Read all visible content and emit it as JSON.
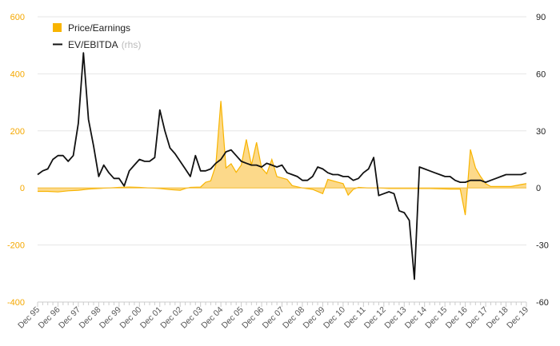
{
  "chart_data": {
    "type": "area+line",
    "x_labels": [
      "Dec 95",
      "Dec 96",
      "Dec 97",
      "Dec 98",
      "Dec 99",
      "Dec 00",
      "Dec 01",
      "Dec 02",
      "Dec 03",
      "Dec 04",
      "Dec 05",
      "Dec 06",
      "Dec 07",
      "Dec 08",
      "Dec 09",
      "Dec 10",
      "Dec 11",
      "Dec 12",
      "Dec 13",
      "Dec 14",
      "Dec 15",
      "Dec 16",
      "Dec 17",
      "Dec 18",
      "Dec 19"
    ],
    "y_left": {
      "min": -400,
      "max": 600,
      "ticks": [
        "600",
        "400",
        "200",
        "0",
        "-200",
        "-400"
      ],
      "tick_values": [
        600,
        400,
        200,
        0,
        -200,
        -400
      ]
    },
    "y_right": {
      "min": -60,
      "max": 90,
      "ticks": [
        "90",
        "60",
        "30",
        "0",
        "-30",
        "-60"
      ],
      "tick_values": [
        90,
        60,
        30,
        0,
        -30,
        -60
      ]
    },
    "grid": true,
    "legend": {
      "position": "top-left",
      "items": [
        {
          "label": "Price/Earnings",
          "note": ""
        },
        {
          "label": "EV/EBITDA",
          "note": "(rhs)"
        }
      ]
    },
    "colors": {
      "pe": "#f8b400",
      "pe_fill": "#fcd98a",
      "ev": "#111111",
      "grid": "#e6e6e6",
      "left_axis": "#f5a800"
    },
    "series": [
      {
        "name": "Price/Earnings",
        "axis": "left",
        "style": "area",
        "points": [
          [
            1995.75,
            -12
          ],
          [
            1996.25,
            -12
          ],
          [
            1996.75,
            -14
          ],
          [
            1997.25,
            -10
          ],
          [
            1997.75,
            -8
          ],
          [
            1998.25,
            -4
          ],
          [
            1998.75,
            -2
          ],
          [
            1999.25,
            0
          ],
          [
            1999.75,
            2
          ],
          [
            2000.25,
            3
          ],
          [
            2000.75,
            2
          ],
          [
            2001.25,
            0
          ],
          [
            2001.75,
            -2
          ],
          [
            2002.25,
            -6
          ],
          [
            2002.75,
            -8
          ],
          [
            2003.0,
            -2
          ],
          [
            2003.25,
            2
          ],
          [
            2003.75,
            3
          ],
          [
            2004.0,
            20
          ],
          [
            2004.25,
            25
          ],
          [
            2004.5,
            80
          ],
          [
            2004.75,
            305
          ],
          [
            2005.0,
            70
          ],
          [
            2005.25,
            85
          ],
          [
            2005.5,
            55
          ],
          [
            2005.75,
            80
          ],
          [
            2006.0,
            170
          ],
          [
            2006.25,
            80
          ],
          [
            2006.5,
            160
          ],
          [
            2006.75,
            70
          ],
          [
            2007.0,
            50
          ],
          [
            2007.25,
            100
          ],
          [
            2007.5,
            40
          ],
          [
            2007.75,
            35
          ],
          [
            2008.0,
            30
          ],
          [
            2008.25,
            8
          ],
          [
            2008.75,
            0
          ],
          [
            2009.25,
            -5
          ],
          [
            2009.75,
            -20
          ],
          [
            2010.0,
            30
          ],
          [
            2010.5,
            20
          ],
          [
            2010.75,
            15
          ],
          [
            2011.0,
            -25
          ],
          [
            2011.25,
            -5
          ],
          [
            2011.5,
            2
          ],
          [
            2012.0,
            0
          ],
          [
            2012.5,
            0
          ],
          [
            2013.0,
            -2
          ],
          [
            2013.5,
            -2
          ],
          [
            2014.0,
            -2
          ],
          [
            2014.5,
            -2
          ],
          [
            2015.0,
            -2
          ],
          [
            2015.5,
            -3
          ],
          [
            2016.0,
            -4
          ],
          [
            2016.5,
            -4
          ],
          [
            2016.75,
            -95
          ],
          [
            2017.0,
            135
          ],
          [
            2017.25,
            70
          ],
          [
            2017.5,
            40
          ],
          [
            2017.75,
            15
          ],
          [
            2018.0,
            5
          ],
          [
            2018.5,
            5
          ],
          [
            2019.0,
            5
          ],
          [
            2019.5,
            12
          ],
          [
            2019.75,
            15
          ]
        ]
      },
      {
        "name": "EV/EBITDA",
        "axis": "right",
        "style": "line",
        "points": [
          [
            1995.75,
            7
          ],
          [
            1996.0,
            9
          ],
          [
            1996.25,
            10
          ],
          [
            1996.5,
            15
          ],
          [
            1996.75,
            17
          ],
          [
            1997.0,
            17
          ],
          [
            1997.25,
            14
          ],
          [
            1997.5,
            17
          ],
          [
            1997.75,
            34
          ],
          [
            1998.0,
            71
          ],
          [
            1998.25,
            36
          ],
          [
            1998.5,
            22
          ],
          [
            1998.75,
            6
          ],
          [
            1999.0,
            12
          ],
          [
            1999.25,
            8
          ],
          [
            1999.5,
            5
          ],
          [
            1999.75,
            5
          ],
          [
            2000.0,
            1
          ],
          [
            2000.25,
            9
          ],
          [
            2000.5,
            12
          ],
          [
            2000.75,
            15
          ],
          [
            2001.0,
            14
          ],
          [
            2001.25,
            14
          ],
          [
            2001.5,
            16
          ],
          [
            2001.75,
            41
          ],
          [
            2002.0,
            30
          ],
          [
            2002.25,
            21
          ],
          [
            2002.5,
            18
          ],
          [
            2002.75,
            14
          ],
          [
            2003.0,
            10
          ],
          [
            2003.25,
            6
          ],
          [
            2003.5,
            17
          ],
          [
            2003.75,
            9
          ],
          [
            2004.0,
            9
          ],
          [
            2004.25,
            10
          ],
          [
            2004.5,
            13
          ],
          [
            2004.75,
            15
          ],
          [
            2005.0,
            19
          ],
          [
            2005.25,
            20
          ],
          [
            2005.5,
            17
          ],
          [
            2005.75,
            14
          ],
          [
            2006.0,
            13
          ],
          [
            2006.25,
            12
          ],
          [
            2006.5,
            12
          ],
          [
            2006.75,
            11
          ],
          [
            2007.0,
            13
          ],
          [
            2007.25,
            12
          ],
          [
            2007.5,
            11
          ],
          [
            2007.75,
            12
          ],
          [
            2008.0,
            8
          ],
          [
            2008.25,
            7
          ],
          [
            2008.5,
            6
          ],
          [
            2008.75,
            4
          ],
          [
            2009.0,
            4
          ],
          [
            2009.25,
            6
          ],
          [
            2009.5,
            11
          ],
          [
            2009.75,
            10
          ],
          [
            2010.0,
            8
          ],
          [
            2010.25,
            7
          ],
          [
            2010.5,
            7
          ],
          [
            2010.75,
            6
          ],
          [
            2011.0,
            6
          ],
          [
            2011.25,
            4
          ],
          [
            2011.5,
            5
          ],
          [
            2011.75,
            8
          ],
          [
            2012.0,
            10
          ],
          [
            2012.25,
            16
          ],
          [
            2012.5,
            -4
          ],
          [
            2012.75,
            -3
          ],
          [
            2013.0,
            -2
          ],
          [
            2013.25,
            -3
          ],
          [
            2013.5,
            -12
          ],
          [
            2013.75,
            -13
          ],
          [
            2014.0,
            -17
          ],
          [
            2014.25,
            -48
          ],
          [
            2014.5,
            11
          ],
          [
            2014.75,
            10
          ],
          [
            2015.0,
            9
          ],
          [
            2015.25,
            8
          ],
          [
            2015.5,
            7
          ],
          [
            2015.75,
            6
          ],
          [
            2016.0,
            6
          ],
          [
            2016.25,
            4
          ],
          [
            2016.5,
            3
          ],
          [
            2016.75,
            3
          ],
          [
            2017.0,
            4
          ],
          [
            2017.5,
            4
          ],
          [
            2017.75,
            3
          ],
          [
            2018.0,
            4
          ],
          [
            2018.25,
            5
          ],
          [
            2018.5,
            6
          ],
          [
            2018.75,
            7
          ],
          [
            2019.0,
            7
          ],
          [
            2019.25,
            7
          ],
          [
            2019.5,
            7
          ],
          [
            2019.75,
            8
          ]
        ]
      }
    ]
  }
}
